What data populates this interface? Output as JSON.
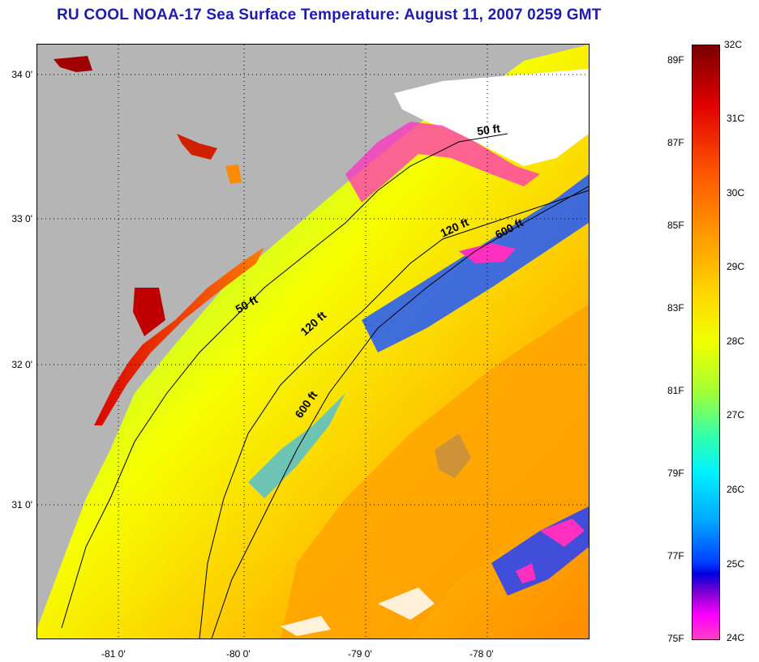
{
  "title": "RU COOL  NOAA-17  Sea Surface Temperature:  August 11, 2007 0259 GMT",
  "map": {
    "lat_labels": [
      "34 0'",
      "33 0'",
      "32 0'",
      "31 0'"
    ],
    "lon_labels": [
      "-81 0'",
      "-80 0'",
      "-79 0'",
      "-78 0'"
    ],
    "contour_labels": [
      "50 ft",
      "120 ft",
      "600 ft",
      "50 ft",
      "120 ft",
      "600 ft"
    ],
    "colors": {
      "land": "#b5b5b5",
      "cloud": "#ffffff",
      "isobath": "#000000"
    }
  },
  "colorbar": {
    "celsius_labels": [
      "32C",
      "31C",
      "30C",
      "29C",
      "28C",
      "27C",
      "26C",
      "25C",
      "24C"
    ],
    "fahrenheit_labels": [
      "89F",
      "87F",
      "85F",
      "83F",
      "81F",
      "79F",
      "77F",
      "75F"
    ],
    "range_c": [
      24,
      32
    ],
    "gradient": [
      "#7a0000",
      "#e00000",
      "#ff5a00",
      "#ff9a00",
      "#ffd800",
      "#f0ff00",
      "#a6ff30",
      "#30ffb0",
      "#00f0ff",
      "#00a8ff",
      "#0040ff",
      "#0000e0",
      "#7a00d0",
      "#ff00ff",
      "#ff40c0"
    ]
  }
}
